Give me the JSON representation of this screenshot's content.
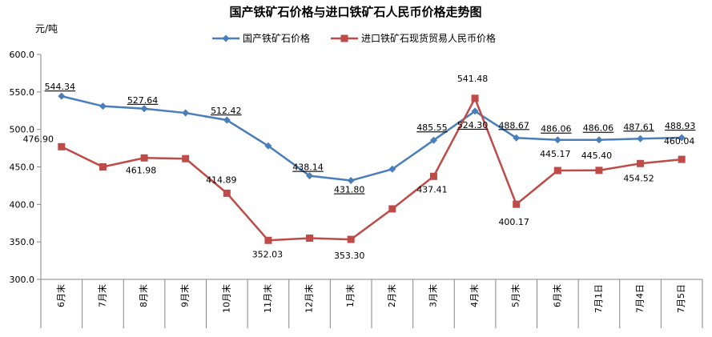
{
  "chart_data": {
    "type": "line",
    "title": "国产铁矿石价格与进口铁矿石人民币价格走势图",
    "ylabel": "元/吨",
    "xlabel": "",
    "ylim": [
      300,
      600
    ],
    "yticks": [
      "300.0",
      "350.0",
      "400.0",
      "450.0",
      "500.0",
      "550.0",
      "600.0"
    ],
    "grid": false,
    "legend_position": "top",
    "categories": [
      "6月末",
      "7月末",
      "8月末",
      "9月末",
      "10月末",
      "11月末",
      "12月末",
      "1月末",
      "2月末",
      "3月末",
      "4月末",
      "5月末",
      "6月末",
      "7月1日",
      "7月4日",
      "7月5日"
    ],
    "series": [
      {
        "name": "国产铁矿石价格",
        "color": "#4a7ebb",
        "marker": "diamond",
        "values": [
          544.34,
          531,
          527.64,
          522,
          512.42,
          478,
          438.14,
          431.8,
          447,
          485.55,
          524.3,
          488.67,
          486.06,
          486.06,
          487.61,
          488.93
        ],
        "labels": [
          "544.34",
          "",
          "527.64",
          "",
          "512.42",
          "",
          "438.14",
          "431.80",
          "",
          "485.55",
          "524.30",
          "488.67",
          "486.06",
          "486.06",
          "487.61",
          "488.93"
        ]
      },
      {
        "name": "进口铁矿石现货贸易人民币价格",
        "color": "#be4b48",
        "marker": "square",
        "values": [
          476.9,
          450,
          461.98,
          461,
          414.89,
          352.03,
          355,
          353.3,
          394,
          437.41,
          541.48,
          400.17,
          445.17,
          445.4,
          454.52,
          460.04
        ],
        "labels": [
          "476.90",
          "",
          "461.98",
          "",
          "414.89",
          "352.03",
          "",
          "353.30",
          "",
          "437.41",
          "541.48",
          "400.17",
          "445.17",
          "445.40",
          "454.52",
          "460.04"
        ]
      }
    ]
  }
}
